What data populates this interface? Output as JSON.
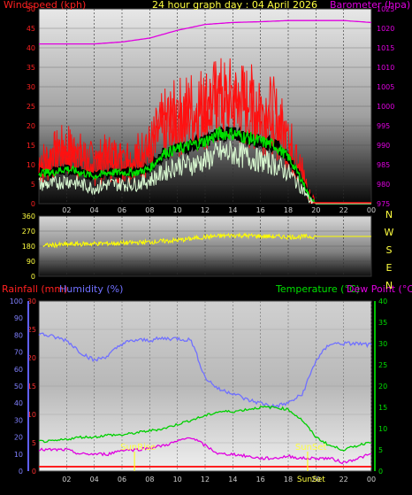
{
  "header": {
    "windspeed_label": "Windspeed (kph)",
    "title": "24 hour graph day : 04 April 2026",
    "barometer_label": "Barometer (hpa)"
  },
  "wind_panel": {
    "left_ticks": [
      "0",
      "5",
      "10",
      "15",
      "20",
      "25",
      "30",
      "35",
      "40",
      "45",
      "50"
    ],
    "right_ticks": [
      "975",
      "980",
      "985",
      "990",
      "995",
      "1000",
      "1005",
      "1010",
      "1015",
      "1020",
      "1025"
    ],
    "time_ticks": [
      "02",
      "04",
      "06",
      "08",
      "10",
      "12",
      "14",
      "16",
      "18",
      "20",
      "22",
      "00"
    ]
  },
  "direction_panel": {
    "left_ticks": [
      "0",
      "90",
      "180",
      "270",
      "360"
    ],
    "compass_labels": [
      "N",
      "W",
      "S",
      "E",
      "N"
    ]
  },
  "bottom_header": {
    "rainfall_label": "Rainfall (mm)",
    "humidity_label": "Humidity (%)",
    "temperature_label": "Temperature (°C)",
    "dewpoint_label": "Dew Point (°C)"
  },
  "bottom_panel": {
    "humidity_ticks": [
      "0",
      "10",
      "20",
      "30",
      "40",
      "50",
      "60",
      "70",
      "80",
      "90",
      "100"
    ],
    "rain_ticks": [
      "0",
      "5",
      "10",
      "15",
      "20",
      "25",
      "30"
    ],
    "temp_ticks": [
      "0",
      "5",
      "10",
      "15",
      "20",
      "25",
      "30",
      "35",
      "40"
    ],
    "time_ticks": [
      "02",
      "04",
      "06",
      "08",
      "10",
      "12",
      "14",
      "16",
      "18",
      "20",
      "22",
      "00"
    ],
    "sunrise_label": "SunRise",
    "sunset_label": "SunSet",
    "sunset_label_bottom": "SunSet"
  },
  "colors": {
    "wind_gust": "#ff1010",
    "wind_avg": "#00e000",
    "wind_low": "#d8f8d0",
    "barometer": "#e000e0",
    "direction": "#ffff00",
    "humidity": "#7070ff",
    "temperature": "#00d000",
    "dewpoint": "#e000e0",
    "rainfall": "#ff2020"
  },
  "chart_data": [
    {
      "type": "line",
      "title": "24 hour graph day : 04 April 2026",
      "x_unit": "hour",
      "x_range": [
        0,
        24
      ],
      "ylabel": "Windspeed (kph)",
      "ylim": [
        0,
        50
      ],
      "y2label": "Barometer (hpa)",
      "y2lim": [
        975,
        1025
      ],
      "series": [
        {
          "name": "Gust",
          "axis": "left",
          "x": [
            0,
            1,
            2,
            3,
            4,
            5,
            6,
            7,
            8,
            9,
            10,
            11,
            12,
            13,
            14,
            15,
            16,
            17,
            18,
            19,
            19.5,
            20,
            21,
            22,
            23,
            24
          ],
          "y": [
            10,
            12,
            14,
            12,
            10,
            12,
            11,
            12,
            14,
            20,
            22,
            24,
            25,
            26,
            26,
            25,
            24,
            22,
            16,
            8,
            2,
            0,
            0,
            0,
            0,
            0
          ]
        },
        {
          "name": "Average",
          "axis": "left",
          "x": [
            0,
            1,
            2,
            3,
            4,
            5,
            6,
            7,
            8,
            9,
            10,
            11,
            12,
            13,
            14,
            15,
            16,
            17,
            18,
            19,
            19.5,
            20,
            21,
            22,
            23,
            24
          ],
          "y": [
            8,
            8,
            9,
            8,
            7,
            8,
            8,
            8,
            9,
            13,
            14,
            15,
            16,
            18,
            18,
            17,
            16,
            15,
            12,
            6,
            2,
            0,
            0,
            0,
            0,
            0
          ]
        },
        {
          "name": "Low",
          "axis": "left",
          "x": [
            0,
            1,
            2,
            3,
            4,
            5,
            6,
            7,
            8,
            9,
            10,
            11,
            12,
            13,
            14,
            15,
            16,
            17,
            18,
            19,
            19.5,
            20,
            21,
            22,
            23,
            24
          ],
          "y": [
            5,
            5,
            6,
            5,
            4,
            5,
            5,
            5,
            6,
            8,
            10,
            10,
            11,
            13,
            13,
            12,
            11,
            10,
            8,
            4,
            1,
            0,
            0,
            0,
            0,
            0
          ]
        },
        {
          "name": "Barometer",
          "axis": "right",
          "x": [
            0,
            2,
            4,
            6,
            8,
            10,
            12,
            14,
            16,
            18,
            20,
            22,
            24
          ],
          "y": [
            1016,
            1016,
            1016,
            1016.5,
            1017.5,
            1019.5,
            1021,
            1021.5,
            1021.7,
            1022,
            1022,
            1022,
            1021.5
          ]
        }
      ]
    },
    {
      "type": "line",
      "x_unit": "hour",
      "x_range": [
        0,
        24
      ],
      "ylim": [
        0,
        360
      ],
      "series": [
        {
          "name": "Direction",
          "x": [
            0,
            2,
            4,
            6,
            8,
            10,
            12,
            14,
            16,
            18,
            20,
            22,
            24
          ],
          "y": [
            182,
            190,
            195,
            198,
            205,
            215,
            235,
            245,
            240,
            235,
            238,
            238,
            238
          ]
        }
      ]
    },
    {
      "type": "line",
      "x_unit": "hour",
      "x_range": [
        0,
        24
      ],
      "ylabel": "Humidity (%)",
      "ylim": [
        0,
        100
      ],
      "y2label": "Temperature (°C)",
      "y2lim": [
        0,
        40
      ],
      "y3label": "Rainfall (mm)",
      "y3lim": [
        0,
        30
      ],
      "annotations": [
        {
          "text": "SunRise",
          "x": 6.9
        },
        {
          "text": "SunSet",
          "x": 19.4
        }
      ],
      "series": [
        {
          "name": "Humidity",
          "axis": "left",
          "x": [
            0,
            1,
            2,
            3,
            4,
            5,
            6,
            7,
            8,
            9,
            10,
            11,
            12,
            13,
            14,
            15,
            16,
            17,
            18,
            19,
            20,
            21,
            22,
            23,
            24
          ],
          "y": [
            81,
            79,
            77,
            70,
            65,
            68,
            75,
            77,
            77,
            78,
            78,
            77,
            55,
            48,
            46,
            42,
            40,
            38,
            40,
            45,
            65,
            75,
            75,
            75,
            74
          ]
        },
        {
          "name": "Temperature",
          "axis": "right",
          "x": [
            0,
            1,
            2,
            3,
            4,
            5,
            6,
            7,
            8,
            9,
            10,
            11,
            12,
            13,
            14,
            15,
            16,
            17,
            18,
            19,
            20,
            21,
            22,
            23,
            24
          ],
          "y": [
            7,
            7,
            7.5,
            8,
            8,
            8.5,
            8.5,
            9,
            9.5,
            10,
            11,
            12,
            13,
            14,
            14,
            14.5,
            15,
            15,
            14.5,
            12,
            8,
            6,
            5,
            6,
            7
          ]
        },
        {
          "name": "Dew Point",
          "axis": "right",
          "x": [
            0,
            1,
            2,
            3,
            4,
            5,
            6,
            7,
            8,
            9,
            10,
            11,
            12,
            13,
            14,
            15,
            16,
            17,
            18,
            19,
            20,
            21,
            22,
            23,
            24
          ],
          "y": [
            5,
            5,
            5,
            4,
            4,
            4,
            5,
            5,
            5.5,
            6,
            7,
            8,
            6,
            4,
            4,
            3.5,
            3,
            3,
            3.5,
            3,
            3,
            3,
            2,
            3,
            4
          ]
        },
        {
          "name": "Rainfall",
          "axis": "left3",
          "x": [
            0,
            24
          ],
          "y": [
            0,
            0
          ]
        }
      ]
    }
  ]
}
